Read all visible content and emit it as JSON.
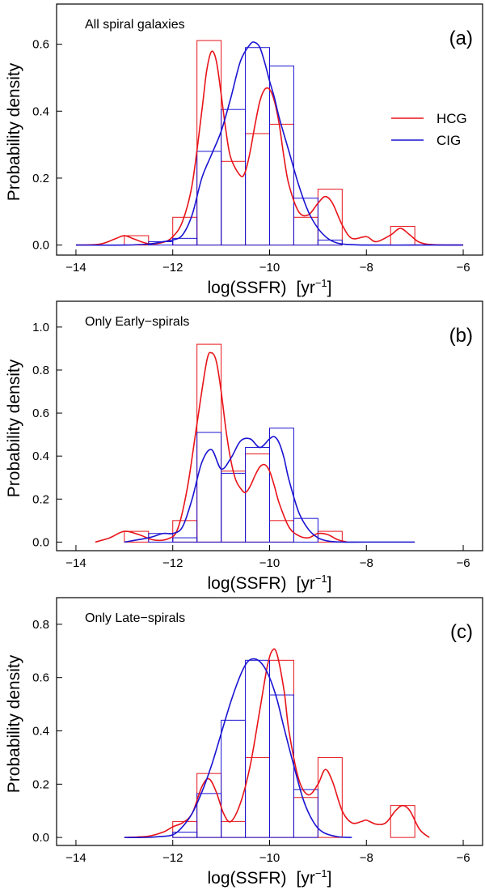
{
  "colors": {
    "HCG": "#e8141a",
    "CIG": "#1a14d2",
    "axis": "#000000"
  },
  "chart_data": [
    {
      "type": "histogram+density",
      "panel_label": "(a)",
      "annotation": "All spiral galaxies",
      "xlabel": "log(SSFR)",
      "xunit_base": "yr",
      "xunit_exp": "−1",
      "ylabel": "Probability density",
      "xlim": [
        -14.4,
        -5.6
      ],
      "ylim": [
        -0.03,
        0.72
      ],
      "xticks": [
        -14,
        -12,
        -10,
        -8,
        -6
      ],
      "xtick_labels": [
        "−14",
        "−12",
        "−10",
        "−8",
        "−6"
      ],
      "yticks": [
        0,
        0.2,
        0.4,
        0.6
      ],
      "ytick_labels": [
        "0.0",
        "0.2",
        "0.4",
        "0.6"
      ],
      "legend": [
        "HCG",
        "CIG"
      ],
      "series": [
        {
          "name": "HCG",
          "hist": {
            "edges": [
              -13.0,
              -12.5,
              -12.0,
              -11.5,
              -11.0,
              -10.5,
              -10.0,
              -9.5,
              -9.0,
              -8.5,
              -8.0,
              -7.5,
              -7.0
            ],
            "values": [
              0.028,
              0.0,
              0.083,
              0.611,
              0.25,
              0.333,
              0.361,
              0.083,
              0.167,
              0.0,
              0.0,
              0.056
            ]
          },
          "density": {
            "x": [
              -14.0,
              -13.5,
              -13.2,
              -13.0,
              -12.8,
              -12.5,
              -12.2,
              -12.0,
              -11.8,
              -11.6,
              -11.4,
              -11.3,
              -11.2,
              -11.1,
              -11.0,
              -10.9,
              -10.8,
              -10.6,
              -10.5,
              -10.4,
              -10.3,
              -10.2,
              -10.1,
              -10.0,
              -9.9,
              -9.8,
              -9.7,
              -9.6,
              -9.4,
              -9.2,
              -9.0,
              -8.85,
              -8.7,
              -8.5,
              -8.3,
              -8.0,
              -7.8,
              -7.5,
              -7.3,
              -7.1,
              -6.9,
              -6.6,
              -6.0
            ],
            "y": [
              0.0,
              0.003,
              0.018,
              0.028,
              0.018,
              0.004,
              0.008,
              0.025,
              0.07,
              0.18,
              0.4,
              0.52,
              0.578,
              0.55,
              0.45,
              0.34,
              0.26,
              0.207,
              0.22,
              0.28,
              0.36,
              0.43,
              0.465,
              0.465,
              0.43,
              0.36,
              0.26,
              0.18,
              0.1,
              0.09,
              0.125,
              0.145,
              0.125,
              0.06,
              0.02,
              0.025,
              0.01,
              0.03,
              0.05,
              0.03,
              0.008,
              0.001,
              0.0
            ]
          }
        },
        {
          "name": "CIG",
          "hist": {
            "edges": [
              -12.5,
              -12.0,
              -11.5,
              -11.0,
              -10.5,
              -10.0,
              -9.5,
              -9.0,
              -8.5
            ],
            "values": [
              0.01,
              0.02,
              0.28,
              0.405,
              0.59,
              0.535,
              0.14,
              0.015
            ]
          },
          "density": {
            "x": [
              -14.0,
              -13.0,
              -12.5,
              -12.2,
              -12.0,
              -11.8,
              -11.6,
              -11.4,
              -11.2,
              -11.0,
              -10.8,
              -10.6,
              -10.4,
              -10.3,
              -10.2,
              -10.1,
              -10.0,
              -9.9,
              -9.8,
              -9.6,
              -9.4,
              -9.2,
              -9.0,
              -8.8,
              -8.6,
              -8.4,
              -8.0,
              -7.0,
              -6.0
            ],
            "y": [
              0.0,
              0.0,
              0.003,
              0.01,
              0.015,
              0.03,
              0.09,
              0.2,
              0.27,
              0.34,
              0.44,
              0.55,
              0.6,
              0.605,
              0.59,
              0.545,
              0.49,
              0.44,
              0.38,
              0.28,
              0.18,
              0.1,
              0.05,
              0.02,
              0.006,
              0.002,
              0.0,
              0.0,
              0.0
            ]
          }
        }
      ]
    },
    {
      "type": "histogram+density",
      "panel_label": "(b)",
      "annotation": "Only Early−spirals",
      "xlabel": "log(SSFR)",
      "xunit_base": "yr",
      "xunit_exp": "−1",
      "ylabel": "Probability density",
      "xlim": [
        -14.4,
        -5.6
      ],
      "ylim": [
        -0.04,
        1.12
      ],
      "xticks": [
        -14,
        -12,
        -10,
        -8,
        -6
      ],
      "xtick_labels": [
        "−14",
        "−12",
        "−10",
        "−8",
        "−6"
      ],
      "yticks": [
        0,
        0.2,
        0.4,
        0.6,
        0.8,
        1.0
      ],
      "ytick_labels": [
        "0.0",
        "0.2",
        "0.4",
        "0.6",
        "0.8",
        "1.0"
      ],
      "series": [
        {
          "name": "HCG",
          "hist": {
            "edges": [
              -13.0,
              -12.5,
              -12.0,
              -11.5,
              -11.0,
              -10.5,
              -10.0,
              -9.5,
              -9.0,
              -8.5
            ],
            "values": [
              0.05,
              0.0,
              0.1,
              0.92,
              0.33,
              0.41,
              0.1,
              0.0,
              0.05
            ]
          },
          "density": {
            "x": [
              -13.6,
              -13.3,
              -13.0,
              -12.7,
              -12.4,
              -12.1,
              -11.9,
              -11.7,
              -11.5,
              -11.3,
              -11.2,
              -11.1,
              -11.0,
              -10.9,
              -10.8,
              -10.7,
              -10.6,
              -10.5,
              -10.4,
              -10.3,
              -10.2,
              -10.1,
              -10.0,
              -9.9,
              -9.8,
              -9.6,
              -9.4,
              -9.2,
              -9.0,
              -8.8,
              -8.6,
              -8.4
            ],
            "y": [
              0.0,
              0.02,
              0.05,
              0.035,
              0.01,
              0.015,
              0.06,
              0.25,
              0.55,
              0.84,
              0.88,
              0.84,
              0.7,
              0.52,
              0.38,
              0.29,
              0.25,
              0.23,
              0.26,
              0.31,
              0.35,
              0.36,
              0.33,
              0.26,
              0.18,
              0.07,
              0.03,
              0.02,
              0.04,
              0.035,
              0.012,
              0.0
            ]
          }
        },
        {
          "name": "CIG",
          "hist": {
            "edges": [
              -12.5,
              -12.0,
              -11.5,
              -11.0,
              -10.5,
              -10.0,
              -9.5,
              -9.0
            ],
            "values": [
              0.04,
              0.02,
              0.51,
              0.32,
              0.44,
              0.53,
              0.11
            ]
          },
          "density": {
            "x": [
              -13.0,
              -12.5,
              -12.2,
              -12.0,
              -11.8,
              -11.6,
              -11.4,
              -11.2,
              -11.0,
              -10.8,
              -10.6,
              -10.4,
              -10.2,
              -10.0,
              -9.9,
              -9.8,
              -9.7,
              -9.6,
              -9.4,
              -9.2,
              -9.0,
              -8.8,
              -8.5,
              -8.0,
              -7.0
            ],
            "y": [
              0.0,
              0.02,
              0.04,
              0.04,
              0.07,
              0.2,
              0.37,
              0.43,
              0.34,
              0.39,
              0.47,
              0.48,
              0.44,
              0.48,
              0.49,
              0.46,
              0.39,
              0.29,
              0.14,
              0.06,
              0.02,
              0.005,
              0.0,
              0.0,
              0.0
            ]
          }
        }
      ]
    },
    {
      "type": "histogram+density",
      "panel_label": "(c)",
      "annotation": "Only Late−spirals",
      "xlabel": "log(SSFR)",
      "xunit_base": "yr",
      "xunit_exp": "−1",
      "ylabel": "Probability density",
      "xlim": [
        -14.4,
        -5.6
      ],
      "ylim": [
        -0.03,
        0.9
      ],
      "xticks": [
        -14,
        -12,
        -10,
        -8,
        -6
      ],
      "xtick_labels": [
        "−14",
        "−12",
        "−10",
        "−8",
        "−6"
      ],
      "yticks": [
        0,
        0.2,
        0.4,
        0.6,
        0.8
      ],
      "ytick_labels": [
        "0.0",
        "0.2",
        "0.4",
        "0.6",
        "0.8"
      ],
      "series": [
        {
          "name": "HCG",
          "hist": {
            "edges": [
              -12.0,
              -11.5,
              -11.0,
              -10.5,
              -10.0,
              -9.5,
              -9.0,
              -8.5,
              -8.0,
              -7.5,
              -7.0
            ],
            "values": [
              0.06,
              0.24,
              0.06,
              0.3,
              0.665,
              0.15,
              0.3,
              0.0,
              0.0,
              0.12
            ]
          },
          "density": {
            "x": [
              -13.0,
              -12.5,
              -12.2,
              -12.0,
              -11.8,
              -11.6,
              -11.4,
              -11.25,
              -11.1,
              -10.95,
              -10.8,
              -10.6,
              -10.4,
              -10.2,
              -10.05,
              -9.95,
              -9.85,
              -9.7,
              -9.6,
              -9.4,
              -9.2,
              -9.0,
              -8.85,
              -8.7,
              -8.5,
              -8.3,
              -8.1,
              -8.0,
              -7.8,
              -7.6,
              -7.4,
              -7.25,
              -7.1,
              -6.9,
              -6.7
            ],
            "y": [
              0.0,
              0.005,
              0.02,
              0.04,
              0.055,
              0.09,
              0.19,
              0.22,
              0.17,
              0.09,
              0.06,
              0.13,
              0.27,
              0.48,
              0.64,
              0.7,
              0.69,
              0.55,
              0.4,
              0.22,
              0.16,
              0.2,
              0.255,
              0.21,
              0.1,
              0.055,
              0.06,
              0.065,
              0.05,
              0.055,
              0.1,
              0.12,
              0.1,
              0.03,
              0.0
            ]
          }
        },
        {
          "name": "CIG",
          "hist": {
            "edges": [
              -12.0,
              -11.5,
              -11.0,
              -10.5,
              -10.0,
              -9.5,
              -9.0
            ],
            "values": [
              0.02,
              0.165,
              0.44,
              0.665,
              0.535,
              0.18
            ]
          },
          "density": {
            "x": [
              -13.0,
              -12.6,
              -12.3,
              -12.0,
              -11.8,
              -11.6,
              -11.4,
              -11.2,
              -11.0,
              -10.8,
              -10.6,
              -10.45,
              -10.3,
              -10.15,
              -10.0,
              -9.85,
              -9.7,
              -9.5,
              -9.3,
              -9.1,
              -8.9,
              -8.6,
              -8.3
            ],
            "y": [
              0.0,
              0.0,
              0.003,
              0.01,
              0.04,
              0.09,
              0.17,
              0.27,
              0.39,
              0.51,
              0.61,
              0.66,
              0.67,
              0.65,
              0.6,
              0.52,
              0.41,
              0.27,
              0.14,
              0.06,
              0.02,
              0.003,
              0.0
            ]
          }
        }
      ]
    }
  ]
}
